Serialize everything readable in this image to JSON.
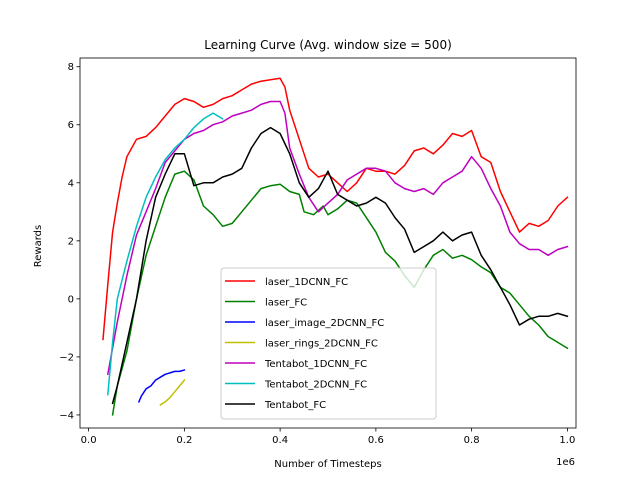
{
  "chart_data": {
    "type": "line",
    "title": "Learning Curve (Avg. window size = 500)",
    "xlabel": "Number of Timesteps",
    "ylabel": "Rewards",
    "x_offset_label": "1e6",
    "xlim": [
      -0.018,
      1.018
    ],
    "ylim": [
      -4.45,
      8.3
    ],
    "x_ticks": [
      0.0,
      0.2,
      0.4,
      0.6,
      0.8,
      1.0
    ],
    "x_tick_labels": [
      "0.0",
      "0.2",
      "0.4",
      "0.6",
      "0.8",
      "1.0"
    ],
    "y_ticks": [
      -4,
      -2,
      0,
      2,
      4,
      6,
      8
    ],
    "y_tick_labels": [
      "−4",
      "−2",
      "0",
      "2",
      "4",
      "6",
      "8"
    ],
    "grid": false,
    "legend_position": "lower-center",
    "series": [
      {
        "name": "laser_1DCNN_FC",
        "color": "#ff0000",
        "points": [
          [
            0.03,
            -1.4
          ],
          [
            0.04,
            0.5
          ],
          [
            0.05,
            2.3
          ],
          [
            0.06,
            3.3
          ],
          [
            0.07,
            4.2
          ],
          [
            0.08,
            4.9
          ],
          [
            0.09,
            5.2
          ],
          [
            0.1,
            5.5
          ],
          [
            0.12,
            5.6
          ],
          [
            0.14,
            5.9
          ],
          [
            0.16,
            6.3
          ],
          [
            0.18,
            6.7
          ],
          [
            0.2,
            6.9
          ],
          [
            0.22,
            6.8
          ],
          [
            0.24,
            6.6
          ],
          [
            0.26,
            6.7
          ],
          [
            0.28,
            6.9
          ],
          [
            0.3,
            7.0
          ],
          [
            0.32,
            7.2
          ],
          [
            0.34,
            7.4
          ],
          [
            0.36,
            7.5
          ],
          [
            0.38,
            7.55
          ],
          [
            0.4,
            7.6
          ],
          [
            0.41,
            7.3
          ],
          [
            0.42,
            6.5
          ],
          [
            0.44,
            5.5
          ],
          [
            0.46,
            4.5
          ],
          [
            0.48,
            4.2
          ],
          [
            0.5,
            4.3
          ],
          [
            0.52,
            4.0
          ],
          [
            0.54,
            3.7
          ],
          [
            0.56,
            4.0
          ],
          [
            0.58,
            4.5
          ],
          [
            0.6,
            4.4
          ],
          [
            0.62,
            4.4
          ],
          [
            0.64,
            4.3
          ],
          [
            0.66,
            4.6
          ],
          [
            0.68,
            5.1
          ],
          [
            0.7,
            5.2
          ],
          [
            0.72,
            5.0
          ],
          [
            0.74,
            5.3
          ],
          [
            0.76,
            5.7
          ],
          [
            0.78,
            5.6
          ],
          [
            0.8,
            5.8
          ],
          [
            0.82,
            4.9
          ],
          [
            0.84,
            4.7
          ],
          [
            0.86,
            3.7
          ],
          [
            0.88,
            3.0
          ],
          [
            0.9,
            2.3
          ],
          [
            0.92,
            2.6
          ],
          [
            0.94,
            2.5
          ],
          [
            0.96,
            2.7
          ],
          [
            0.98,
            3.2
          ],
          [
            1.0,
            3.5
          ]
        ]
      },
      {
        "name": "laser_FC",
        "color": "#008000",
        "points": [
          [
            0.05,
            -4.0
          ],
          [
            0.06,
            -3.0
          ],
          [
            0.08,
            -1.8
          ],
          [
            0.1,
            0.0
          ],
          [
            0.12,
            1.5
          ],
          [
            0.14,
            2.5
          ],
          [
            0.16,
            3.5
          ],
          [
            0.18,
            4.3
          ],
          [
            0.2,
            4.4
          ],
          [
            0.22,
            4.1
          ],
          [
            0.24,
            3.2
          ],
          [
            0.26,
            2.9
          ],
          [
            0.28,
            2.5
          ],
          [
            0.3,
            2.6
          ],
          [
            0.32,
            3.0
          ],
          [
            0.34,
            3.4
          ],
          [
            0.36,
            3.8
          ],
          [
            0.38,
            3.9
          ],
          [
            0.4,
            3.95
          ],
          [
            0.42,
            3.7
          ],
          [
            0.44,
            3.6
          ],
          [
            0.45,
            3.0
          ],
          [
            0.47,
            2.9
          ],
          [
            0.49,
            3.2
          ],
          [
            0.5,
            2.9
          ],
          [
            0.52,
            3.1
          ],
          [
            0.54,
            3.4
          ],
          [
            0.56,
            3.3
          ],
          [
            0.58,
            2.8
          ],
          [
            0.6,
            2.3
          ],
          [
            0.62,
            1.6
          ],
          [
            0.64,
            1.3
          ],
          [
            0.66,
            0.8
          ],
          [
            0.68,
            0.4
          ],
          [
            0.7,
            1.0
          ],
          [
            0.72,
            1.5
          ],
          [
            0.74,
            1.7
          ],
          [
            0.76,
            1.4
          ],
          [
            0.78,
            1.5
          ],
          [
            0.8,
            1.35
          ],
          [
            0.82,
            1.1
          ],
          [
            0.84,
            0.9
          ],
          [
            0.86,
            0.4
          ],
          [
            0.88,
            0.2
          ],
          [
            0.9,
            -0.2
          ],
          [
            0.92,
            -0.6
          ],
          [
            0.94,
            -0.9
          ],
          [
            0.96,
            -1.3
          ],
          [
            0.98,
            -1.5
          ],
          [
            1.0,
            -1.7
          ]
        ]
      },
      {
        "name": "laser_image_2DCNN_FC",
        "color": "#0000ff",
        "points": [
          [
            0.105,
            -3.55
          ],
          [
            0.11,
            -3.35
          ],
          [
            0.12,
            -3.1
          ],
          [
            0.13,
            -3.0
          ],
          [
            0.14,
            -2.8
          ],
          [
            0.15,
            -2.7
          ],
          [
            0.16,
            -2.6
          ],
          [
            0.17,
            -2.55
          ],
          [
            0.18,
            -2.5
          ],
          [
            0.19,
            -2.5
          ],
          [
            0.2,
            -2.45
          ]
        ]
      },
      {
        "name": "laser_rings_2DCNN_FC",
        "color": "#bfbf00",
        "points": [
          [
            0.15,
            -3.65
          ],
          [
            0.16,
            -3.55
          ],
          [
            0.17,
            -3.4
          ],
          [
            0.18,
            -3.2
          ],
          [
            0.19,
            -3.0
          ],
          [
            0.2,
            -2.8
          ]
        ]
      },
      {
        "name": "Tentabot_1DCNN_FC",
        "color": "#bf00bf",
        "points": [
          [
            0.04,
            -2.6
          ],
          [
            0.06,
            -0.8
          ],
          [
            0.08,
            0.8
          ],
          [
            0.1,
            2.2
          ],
          [
            0.12,
            3.0
          ],
          [
            0.14,
            3.8
          ],
          [
            0.16,
            4.7
          ],
          [
            0.18,
            5.1
          ],
          [
            0.2,
            5.5
          ],
          [
            0.22,
            5.7
          ],
          [
            0.24,
            5.8
          ],
          [
            0.26,
            6.0
          ],
          [
            0.28,
            6.1
          ],
          [
            0.3,
            6.3
          ],
          [
            0.32,
            6.4
          ],
          [
            0.34,
            6.5
          ],
          [
            0.36,
            6.7
          ],
          [
            0.38,
            6.8
          ],
          [
            0.4,
            6.8
          ],
          [
            0.41,
            6.4
          ],
          [
            0.42,
            5.2
          ],
          [
            0.44,
            4.3
          ],
          [
            0.46,
            3.5
          ],
          [
            0.48,
            3.0
          ],
          [
            0.5,
            3.3
          ],
          [
            0.52,
            3.6
          ],
          [
            0.54,
            4.1
          ],
          [
            0.56,
            4.3
          ],
          [
            0.58,
            4.5
          ],
          [
            0.6,
            4.5
          ],
          [
            0.62,
            4.4
          ],
          [
            0.64,
            4.0
          ],
          [
            0.66,
            3.8
          ],
          [
            0.68,
            3.7
          ],
          [
            0.7,
            3.8
          ],
          [
            0.72,
            3.6
          ],
          [
            0.74,
            4.0
          ],
          [
            0.76,
            4.2
          ],
          [
            0.78,
            4.4
          ],
          [
            0.8,
            4.9
          ],
          [
            0.82,
            4.5
          ],
          [
            0.84,
            3.8
          ],
          [
            0.86,
            3.2
          ],
          [
            0.88,
            2.3
          ],
          [
            0.9,
            1.9
          ],
          [
            0.92,
            1.7
          ],
          [
            0.94,
            1.7
          ],
          [
            0.96,
            1.5
          ],
          [
            0.98,
            1.7
          ],
          [
            1.0,
            1.8
          ]
        ]
      },
      {
        "name": "Tentabot_2DCNN_FC",
        "color": "#00bfbf",
        "points": [
          [
            0.04,
            -3.3
          ],
          [
            0.05,
            -1.5
          ],
          [
            0.06,
            0.0
          ],
          [
            0.08,
            1.3
          ],
          [
            0.1,
            2.5
          ],
          [
            0.12,
            3.5
          ],
          [
            0.14,
            4.2
          ],
          [
            0.16,
            4.8
          ],
          [
            0.18,
            5.2
          ],
          [
            0.2,
            5.5
          ],
          [
            0.22,
            5.9
          ],
          [
            0.24,
            6.2
          ],
          [
            0.26,
            6.4
          ],
          [
            0.28,
            6.2
          ]
        ]
      },
      {
        "name": "Tentabot_FC",
        "color": "#000000",
        "points": [
          [
            0.05,
            -3.6
          ],
          [
            0.06,
            -3.0
          ],
          [
            0.08,
            -1.5
          ],
          [
            0.1,
            0.0
          ],
          [
            0.12,
            2.0
          ],
          [
            0.14,
            3.5
          ],
          [
            0.16,
            4.3
          ],
          [
            0.18,
            5.0
          ],
          [
            0.2,
            5.0
          ],
          [
            0.22,
            3.9
          ],
          [
            0.24,
            4.0
          ],
          [
            0.26,
            4.0
          ],
          [
            0.28,
            4.2
          ],
          [
            0.3,
            4.3
          ],
          [
            0.32,
            4.5
          ],
          [
            0.34,
            5.2
          ],
          [
            0.36,
            5.7
          ],
          [
            0.38,
            5.9
          ],
          [
            0.4,
            5.7
          ],
          [
            0.42,
            5.0
          ],
          [
            0.44,
            4.0
          ],
          [
            0.46,
            3.5
          ],
          [
            0.48,
            3.8
          ],
          [
            0.5,
            4.4
          ],
          [
            0.52,
            3.6
          ],
          [
            0.54,
            3.4
          ],
          [
            0.56,
            3.2
          ],
          [
            0.58,
            3.3
          ],
          [
            0.6,
            3.5
          ],
          [
            0.62,
            3.3
          ],
          [
            0.64,
            2.8
          ],
          [
            0.66,
            2.4
          ],
          [
            0.68,
            1.6
          ],
          [
            0.7,
            1.8
          ],
          [
            0.72,
            2.0
          ],
          [
            0.74,
            2.3
          ],
          [
            0.76,
            2.0
          ],
          [
            0.78,
            2.2
          ],
          [
            0.8,
            2.3
          ],
          [
            0.82,
            1.5
          ],
          [
            0.84,
            1.0
          ],
          [
            0.86,
            0.4
          ],
          [
            0.88,
            -0.2
          ],
          [
            0.9,
            -0.9
          ],
          [
            0.92,
            -0.7
          ],
          [
            0.94,
            -0.6
          ],
          [
            0.96,
            -0.6
          ],
          [
            0.98,
            -0.5
          ],
          [
            1.0,
            -0.6
          ]
        ]
      }
    ]
  }
}
